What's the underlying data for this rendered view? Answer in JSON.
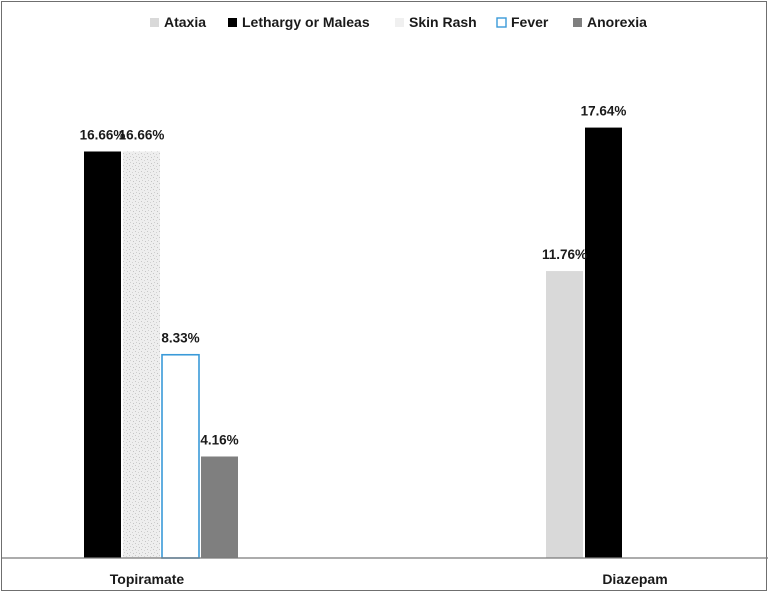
{
  "chart_data": {
    "type": "bar",
    "categories": [
      "Topiramate",
      "Diazepam"
    ],
    "series": [
      {
        "name": "Ataxia",
        "values": [
          null,
          11.76
        ],
        "labels": [
          null,
          "11.76%"
        ]
      },
      {
        "name": "Lethargy or Maleas",
        "values": [
          16.66,
          17.64
        ],
        "labels": [
          "16.66%",
          "17.64%"
        ]
      },
      {
        "name": "Skin Rash",
        "values": [
          16.66,
          null
        ],
        "labels": [
          "16.66%",
          null
        ]
      },
      {
        "name": "Fever",
        "values": [
          8.33,
          null
        ],
        "labels": [
          "8.33%",
          null
        ]
      },
      {
        "name": "Anorexia",
        "values": [
          4.16,
          null
        ],
        "labels": [
          "4.16%",
          null
        ]
      }
    ],
    "ylim": [
      0,
      20
    ],
    "grid": false,
    "legend_position": "top-center",
    "title": "",
    "xlabel": "",
    "ylabel": ""
  },
  "colors": {
    "Ataxia": "#d9d9d9",
    "Lethargy or Maleas": "#000000",
    "Skin Rash": "#ececec",
    "Fever": "#ffffff",
    "Fever_border": "#3a9ad9",
    "Anorexia": "#7f7f7f",
    "axis": "#7a7a7a"
  }
}
